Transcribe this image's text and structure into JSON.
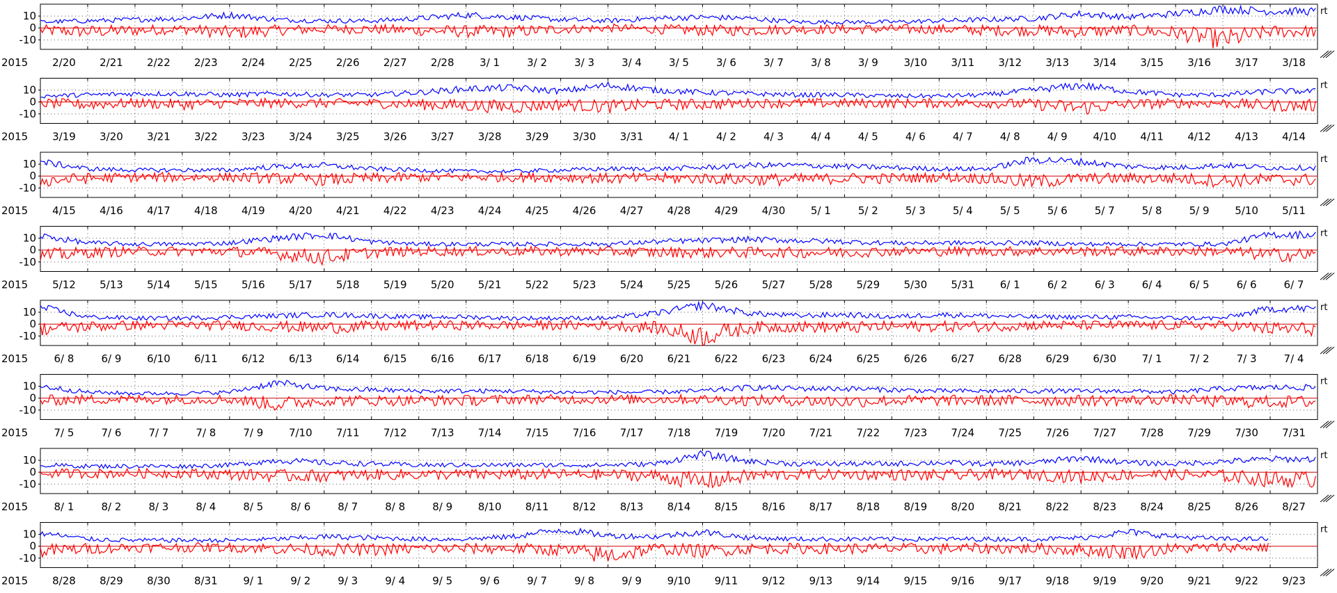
{
  "chart_data": {
    "type": "line",
    "year_label": "2015",
    "side_label": "rt",
    "yticks": [
      10,
      0,
      -10
    ],
    "ylim": [
      -18,
      20
    ],
    "grid": true,
    "colors": {
      "series_a": "#0000ff",
      "series_b": "#ff0000",
      "zero_line": "#cc0000",
      "axis": "#000000",
      "grid": "#555555"
    },
    "panels": [
      {
        "dates": [
          "2/20",
          "2/21",
          "2/22",
          "2/23",
          "2/24",
          "2/25",
          "2/26",
          "2/27",
          "2/28",
          "3/ 1",
          "3/ 2",
          "3/ 3",
          "3/ 4",
          "3/ 5",
          "3/ 6",
          "3/ 7",
          "3/ 8",
          "3/ 9",
          "3/10",
          "3/11",
          "3/12",
          "3/13",
          "3/14",
          "3/15",
          "3/16",
          "3/17",
          "3/18"
        ],
        "blue": [
          5,
          6,
          7,
          8,
          11,
          7,
          6,
          6,
          8,
          11,
          9,
          7,
          6,
          8,
          9,
          8,
          5,
          5,
          5,
          6,
          7,
          8,
          12,
          9,
          12,
          16,
          14
        ],
        "red": [
          -2,
          -3,
          -2,
          -1,
          -4,
          -2,
          -1,
          -1,
          -2,
          -3,
          -3,
          -1,
          0,
          -1,
          -2,
          -2,
          -1,
          -1,
          -1,
          -1,
          -2,
          -2,
          -3,
          -2,
          -4,
          -10,
          -3
        ]
      },
      {
        "dates": [
          "3/19",
          "3/20",
          "3/21",
          "3/22",
          "3/23",
          "3/24",
          "3/25",
          "3/26",
          "3/27",
          "3/28",
          "3/29",
          "3/30",
          "3/31",
          "4/ 1",
          "4/ 2",
          "4/ 3",
          "4/ 4",
          "4/ 5",
          "4/ 6",
          "4/ 7",
          "4/ 8",
          "4/ 9",
          "4/10",
          "4/11",
          "4/12",
          "4/13",
          "4/14"
        ],
        "blue": [
          5,
          6,
          7,
          7,
          6,
          7,
          6,
          6,
          8,
          11,
          12,
          9,
          14,
          10,
          8,
          7,
          6,
          6,
          5,
          5,
          6,
          10,
          14,
          9,
          6,
          6,
          9
        ],
        "red": [
          -1,
          -2,
          -1,
          -2,
          -1,
          -1,
          -1,
          -1,
          -2,
          -3,
          -4,
          -2,
          -4,
          -2,
          -2,
          -1,
          -1,
          -1,
          -1,
          -1,
          -1,
          -2,
          -5,
          -2,
          -1,
          -1,
          -3
        ]
      },
      {
        "dates": [
          "4/15",
          "4/16",
          "4/17",
          "4/18",
          "4/19",
          "4/20",
          "4/21",
          "4/22",
          "4/23",
          "4/24",
          "4/25",
          "4/26",
          "4/27",
          "4/28",
          "4/29",
          "4/30",
          "5/ 1",
          "5/ 2",
          "5/ 3",
          "5/ 4",
          "5/ 5",
          "5/ 6",
          "5/ 7",
          "5/ 8",
          "5/ 9",
          "5/10",
          "5/11"
        ],
        "blue": [
          12,
          6,
          5,
          5,
          5,
          8,
          9,
          6,
          5,
          4,
          4,
          5,
          6,
          6,
          7,
          9,
          9,
          8,
          7,
          6,
          6,
          14,
          12,
          8,
          7,
          9,
          7
        ],
        "red": [
          -4,
          -2,
          -1,
          -1,
          -1,
          -2,
          -3,
          -2,
          -1,
          -1,
          -1,
          -1,
          -2,
          -2,
          -2,
          -3,
          -3,
          -2,
          -2,
          -1,
          -2,
          -5,
          -2,
          -2,
          -2,
          -4,
          -3
        ]
      },
      {
        "dates": [
          "5/12",
          "5/13",
          "5/14",
          "5/15",
          "5/16",
          "5/17",
          "5/18",
          "5/19",
          "5/20",
          "5/21",
          "5/22",
          "5/23",
          "5/24",
          "5/25",
          "5/26",
          "5/27",
          "5/28",
          "5/29",
          "5/30",
          "5/31",
          "6/ 1",
          "6/ 2",
          "6/ 3",
          "6/ 4",
          "6/ 5",
          "6/ 6",
          "6/ 7"
        ],
        "blue": [
          12,
          6,
          5,
          5,
          6,
          10,
          13,
          7,
          5,
          5,
          5,
          5,
          5,
          7,
          8,
          9,
          8,
          7,
          6,
          6,
          6,
          6,
          5,
          5,
          5,
          5,
          13
        ],
        "red": [
          -5,
          -2,
          -1,
          -1,
          -1,
          -3,
          -6,
          -2,
          -1,
          -1,
          -1,
          -1,
          -1,
          -2,
          -2,
          -2,
          -2,
          -2,
          -1,
          -1,
          -1,
          -1,
          -1,
          -1,
          -1,
          -1,
          -4
        ]
      },
      {
        "dates": [
          "6/ 8",
          "6/ 9",
          "6/10",
          "6/11",
          "6/12",
          "6/13",
          "6/14",
          "6/15",
          "6/16",
          "6/17",
          "6/18",
          "6/19",
          "6/20",
          "6/21",
          "6/22",
          "6/23",
          "6/24",
          "6/25",
          "6/26",
          "6/27",
          "6/28",
          "6/29",
          "6/30",
          "7/ 1",
          "7/ 2",
          "7/ 3",
          "7/ 4"
        ],
        "blue": [
          14,
          6,
          5,
          5,
          6,
          7,
          8,
          7,
          6,
          6,
          5,
          5,
          5,
          9,
          16,
          9,
          7,
          8,
          6,
          8,
          7,
          6,
          6,
          6,
          5,
          5,
          13
        ],
        "red": [
          -4,
          -2,
          -1,
          -1,
          -1,
          -2,
          -3,
          -2,
          -1,
          -1,
          -1,
          -1,
          -1,
          -3,
          -10,
          -3,
          -2,
          -3,
          -2,
          -2,
          -2,
          -1,
          -1,
          -1,
          -1,
          -1,
          -4
        ]
      },
      {
        "dates": [
          "7/ 5",
          "7/ 6",
          "7/ 7",
          "7/ 8",
          "7/ 9",
          "7/10",
          "7/11",
          "7/12",
          "7/13",
          "7/14",
          "7/15",
          "7/16",
          "7/17",
          "7/18",
          "7/19",
          "7/20",
          "7/21",
          "7/22",
          "7/23",
          "7/24",
          "7/25",
          "7/26",
          "7/27",
          "7/28",
          "7/29",
          "7/30",
          "7/31"
        ],
        "blue": [
          10,
          5,
          4,
          4,
          5,
          13,
          8,
          7,
          6,
          6,
          6,
          5,
          5,
          5,
          6,
          9,
          8,
          8,
          7,
          6,
          6,
          6,
          6,
          6,
          5,
          8,
          9
        ],
        "red": [
          -2,
          -1,
          -1,
          -1,
          -1,
          -5,
          -2,
          -2,
          -2,
          -2,
          -1,
          -1,
          -1,
          -1,
          -1,
          -2,
          -2,
          -3,
          -2,
          -2,
          -2,
          -2,
          -2,
          -2,
          -1,
          -3,
          -3
        ]
      },
      {
        "dates": [
          "8/ 1",
          "8/ 2",
          "8/ 3",
          "8/ 4",
          "8/ 5",
          "8/ 6",
          "8/ 7",
          "8/ 8",
          "8/ 9",
          "8/10",
          "8/11",
          "8/12",
          "8/13",
          "8/14",
          "8/15",
          "8/16",
          "8/17",
          "8/18",
          "8/19",
          "8/20",
          "8/21",
          "8/22",
          "8/23",
          "8/24",
          "8/25",
          "8/26",
          "8/27"
        ],
        "blue": [
          6,
          5,
          5,
          5,
          6,
          10,
          8,
          7,
          6,
          6,
          6,
          6,
          6,
          7,
          15,
          9,
          7,
          7,
          7,
          8,
          7,
          8,
          12,
          8,
          7,
          9,
          11
        ],
        "red": [
          -1,
          -1,
          -1,
          -1,
          -2,
          -3,
          -3,
          -2,
          -2,
          -2,
          -2,
          -2,
          -2,
          -3,
          -8,
          -3,
          -2,
          -2,
          -2,
          -3,
          -2,
          -2,
          -4,
          -2,
          -2,
          -3,
          -6
        ]
      },
      {
        "dates": [
          "8/28",
          "8/29",
          "8/30",
          "8/31",
          "9/ 1",
          "9/ 2",
          "9/ 3",
          "9/ 4",
          "9/ 5",
          "9/ 6",
          "9/ 7",
          "9/ 8",
          "9/ 9",
          "9/10",
          "9/11",
          "9/12",
          "9/13",
          "9/14",
          "9/15",
          "9/16",
          "9/17",
          "9/18",
          "9/19",
          "9/20",
          "9/21",
          "9/22",
          "9/23"
        ],
        "blue": [
          11,
          6,
          5,
          5,
          5,
          6,
          8,
          7,
          6,
          6,
          8,
          14,
          9,
          8,
          12,
          7,
          6,
          6,
          6,
          6,
          6,
          6,
          7,
          12,
          8,
          6,
          null
        ],
        "red": [
          -4,
          -2,
          -1,
          -1,
          -1,
          -2,
          -3,
          -3,
          -2,
          -2,
          -2,
          -3,
          -8,
          -2,
          -4,
          -2,
          -2,
          -2,
          -2,
          -2,
          -2,
          -2,
          -3,
          -5,
          -2,
          -1,
          null
        ]
      }
    ]
  }
}
